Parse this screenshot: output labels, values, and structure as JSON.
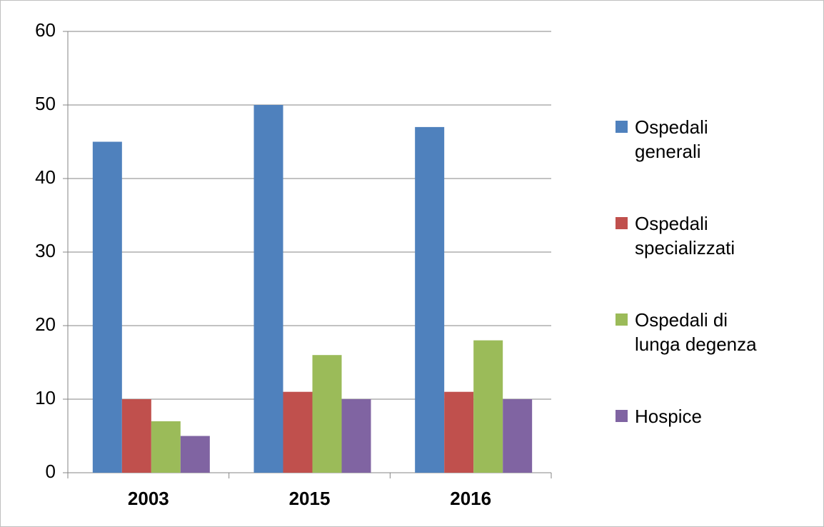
{
  "chart_data": {
    "type": "bar",
    "categories": [
      "2003",
      "2015",
      "2016"
    ],
    "series": [
      {
        "name": "Ospedali generali",
        "color": "#4f81bd",
        "values": [
          45,
          50,
          47
        ]
      },
      {
        "name": "Ospedali specializzati",
        "color": "#c0504d",
        "values": [
          10,
          11,
          11
        ]
      },
      {
        "name": "Ospedali di lunga degenza",
        "color": "#9bbb59",
        "values": [
          7,
          16,
          18
        ]
      },
      {
        "name": "Hospice",
        "color": "#8064a2",
        "values": [
          5,
          10,
          10
        ]
      }
    ],
    "ylim": [
      0,
      60
    ],
    "yticks": [
      0,
      10,
      20,
      30,
      40,
      50,
      60
    ],
    "grid": true,
    "legend": "right"
  }
}
